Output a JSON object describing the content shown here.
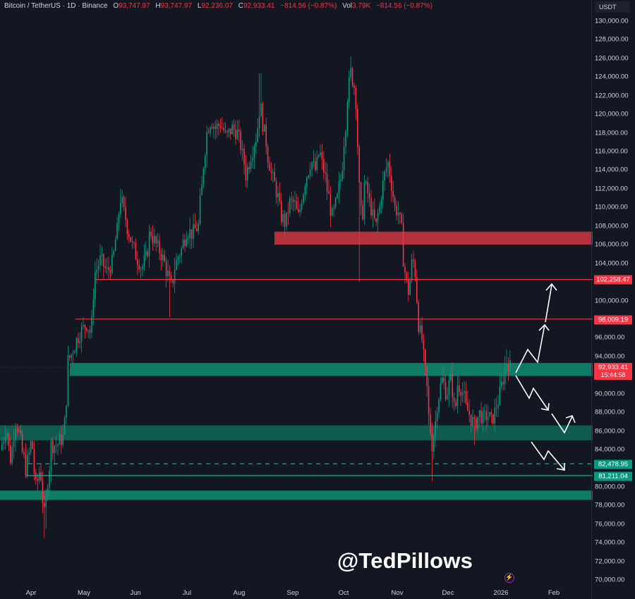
{
  "header": {
    "symbol": "Bitcoin / TetherUS",
    "interval": "1D",
    "exchange": "Binance",
    "title": "Bitcoin / TetherUS · 1D · Binance",
    "open_label": "O",
    "open": "93,747.97",
    "high_label": "H",
    "high": "93,747.97",
    "low_label": "L",
    "low": "92,236.07",
    "close_label": "C",
    "close": "92,933.41",
    "change": "−814.56 (−0.87%)",
    "vol_label": "Vol",
    "vol": "3.79K",
    "vol_change": "−814.56 (−0.87%)"
  },
  "price_axis": {
    "currency": "USDT",
    "ticks": [
      "130,000.00",
      "128,000.00",
      "126,000.00",
      "124,000.00",
      "122,000.00",
      "120,000.00",
      "118,000.00",
      "116,000.00",
      "114,000.00",
      "112,000.00",
      "110,000.00",
      "108,000.00",
      "106,000.00",
      "104,000.00",
      "100,000.00",
      "96,000.00",
      "94,000.00",
      "90,000.00",
      "88,000.00",
      "86,000.00",
      "84,000.00",
      "80,000.00",
      "78,000.00",
      "76,000.00",
      "74,000.00",
      "72,000.00",
      "70,000.00"
    ],
    "tick_values": [
      130000,
      128000,
      126000,
      124000,
      122000,
      120000,
      118000,
      116000,
      114000,
      112000,
      110000,
      108000,
      106000,
      104000,
      100000,
      96000,
      94000,
      90000,
      88000,
      86000,
      84000,
      80000,
      78000,
      76000,
      74000,
      72000,
      70000
    ]
  },
  "price_tags": {
    "resistance_1": {
      "label": "102,258.47",
      "value": 102258.47,
      "color": "#f23645"
    },
    "resistance_2": {
      "label": "98,009.19",
      "value": 98009.19,
      "color": "#f23645"
    },
    "last_price": {
      "label": "92,933.41",
      "countdown": "15:44:58",
      "value": 92933.41,
      "color": "#f23645"
    },
    "support_1": {
      "label": "82,478.95",
      "value": 82478.95,
      "color": "#089981"
    },
    "support_2": {
      "label": "81,211.04",
      "value": 81211.04,
      "color": "#089981"
    }
  },
  "time_axis": {
    "labels": [
      "Apr",
      "May",
      "Jun",
      "Jul",
      "Aug",
      "Sep",
      "Oct",
      "Nov",
      "Dec",
      "2026",
      "Feb"
    ]
  },
  "watermark": "@TedPillows",
  "colors": {
    "background": "#131722",
    "up": "#089981",
    "down": "#f23645",
    "resistance_zone": "#b2313b",
    "support_zone": "#0f7a66",
    "arrow": "#ffffff"
  },
  "chart_data": {
    "type": "candlestick",
    "title": "Bitcoin / TetherUS · 1D · Binance",
    "xlabel": "",
    "ylabel": "USDT",
    "ylim": [
      70000,
      130000
    ],
    "x_tick_labels": [
      "Apr",
      "May",
      "Jun",
      "Jul",
      "Aug",
      "Sep",
      "Oct",
      "Nov",
      "Dec",
      "2026",
      "Feb"
    ],
    "grid": false,
    "last": {
      "open": 93747.97,
      "high": 93747.97,
      "low": 92236.07,
      "close": 92933.41
    },
    "approx_closes_by_month": [
      {
        "month": "Mar-end",
        "close": 82500
      },
      {
        "month": "Apr",
        "low": 74500,
        "close": 94000
      },
      {
        "month": "May",
        "high": 111900,
        "close": 104500
      },
      {
        "month": "Jun",
        "low": 98200,
        "close": 107000
      },
      {
        "month": "Jul",
        "high": 123200,
        "close": 115700
      },
      {
        "month": "Aug",
        "high": 124400,
        "close": 108300
      },
      {
        "month": "Sep",
        "low": 107300,
        "close": 114000
      },
      {
        "month": "Oct",
        "high": 126200,
        "low": 102000,
        "close": 109500
      },
      {
        "month": "Nov",
        "low": 80600,
        "close": 90500
      },
      {
        "month": "Dec",
        "low": 84500,
        "close": 87500
      },
      {
        "month": "Jan",
        "high": 94800,
        "close": 92933
      }
    ],
    "zones": [
      {
        "type": "resistance",
        "from": 106000,
        "to": 107400
      },
      {
        "type": "support",
        "from": 91900,
        "to": 93300
      },
      {
        "type": "support",
        "from": 85000,
        "to": 86600
      },
      {
        "type": "support",
        "from": 78600,
        "to": 79600
      }
    ],
    "horizontal_lines": [
      {
        "value": 102258.47,
        "style": "solid",
        "color": "#f23645"
      },
      {
        "value": 98009.19,
        "style": "solid",
        "color": "#f23645"
      },
      {
        "value": 82478.95,
        "style": "dashed",
        "color": "#089981"
      },
      {
        "value": 81211.04,
        "style": "solid",
        "color": "#089981"
      }
    ],
    "annotations": [
      "Bullish path: zigzag up from ~92,900 through 98,009 to above 102,258",
      "Bearish path: zigzag down from ~92,900 to 86,000 zone then bounce",
      "Bearish path 2: zigzag down from below 86,000 toward 82,479"
    ]
  }
}
